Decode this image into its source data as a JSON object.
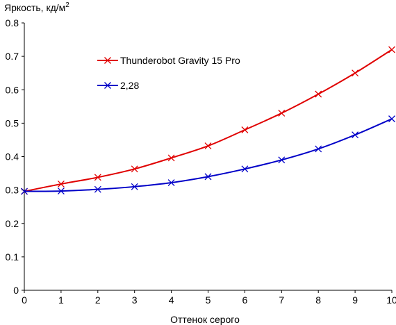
{
  "chart_data": {
    "type": "line",
    "title": "",
    "ylabel": "Яркость, кд/м",
    "ylabel_superscript": "2",
    "xlabel": "Оттенок серого",
    "xlim": [
      0,
      10
    ],
    "ylim": [
      0,
      0.8
    ],
    "x_ticks": [
      0,
      1,
      2,
      3,
      4,
      5,
      6,
      7,
      8,
      9,
      10
    ],
    "y_ticks": [
      0,
      0.1,
      0.2,
      0.3,
      0.4,
      0.5,
      0.6,
      0.7,
      0.8
    ],
    "y_tick_labels": [
      "0",
      "0.1",
      "0.2",
      "0.3",
      "0.4",
      "0.5",
      "0.6",
      "0.7",
      "0.8"
    ],
    "grid": false,
    "legend_position": "top-left",
    "x": [
      0,
      1,
      2,
      3,
      4,
      5,
      6,
      7,
      8,
      9,
      10
    ],
    "series": [
      {
        "name": "Thunderobot Gravity 15 Pro",
        "color": "#e00000",
        "marker": "x",
        "values": [
          0.296,
          0.318,
          0.338,
          0.363,
          0.396,
          0.432,
          0.48,
          0.53,
          0.587,
          0.65,
          0.72
        ]
      },
      {
        "name": "2,28",
        "color": "#0000c8",
        "marker": "x",
        "values": [
          0.296,
          0.297,
          0.302,
          0.31,
          0.322,
          0.34,
          0.363,
          0.39,
          0.423,
          0.465,
          0.513
        ]
      }
    ]
  }
}
